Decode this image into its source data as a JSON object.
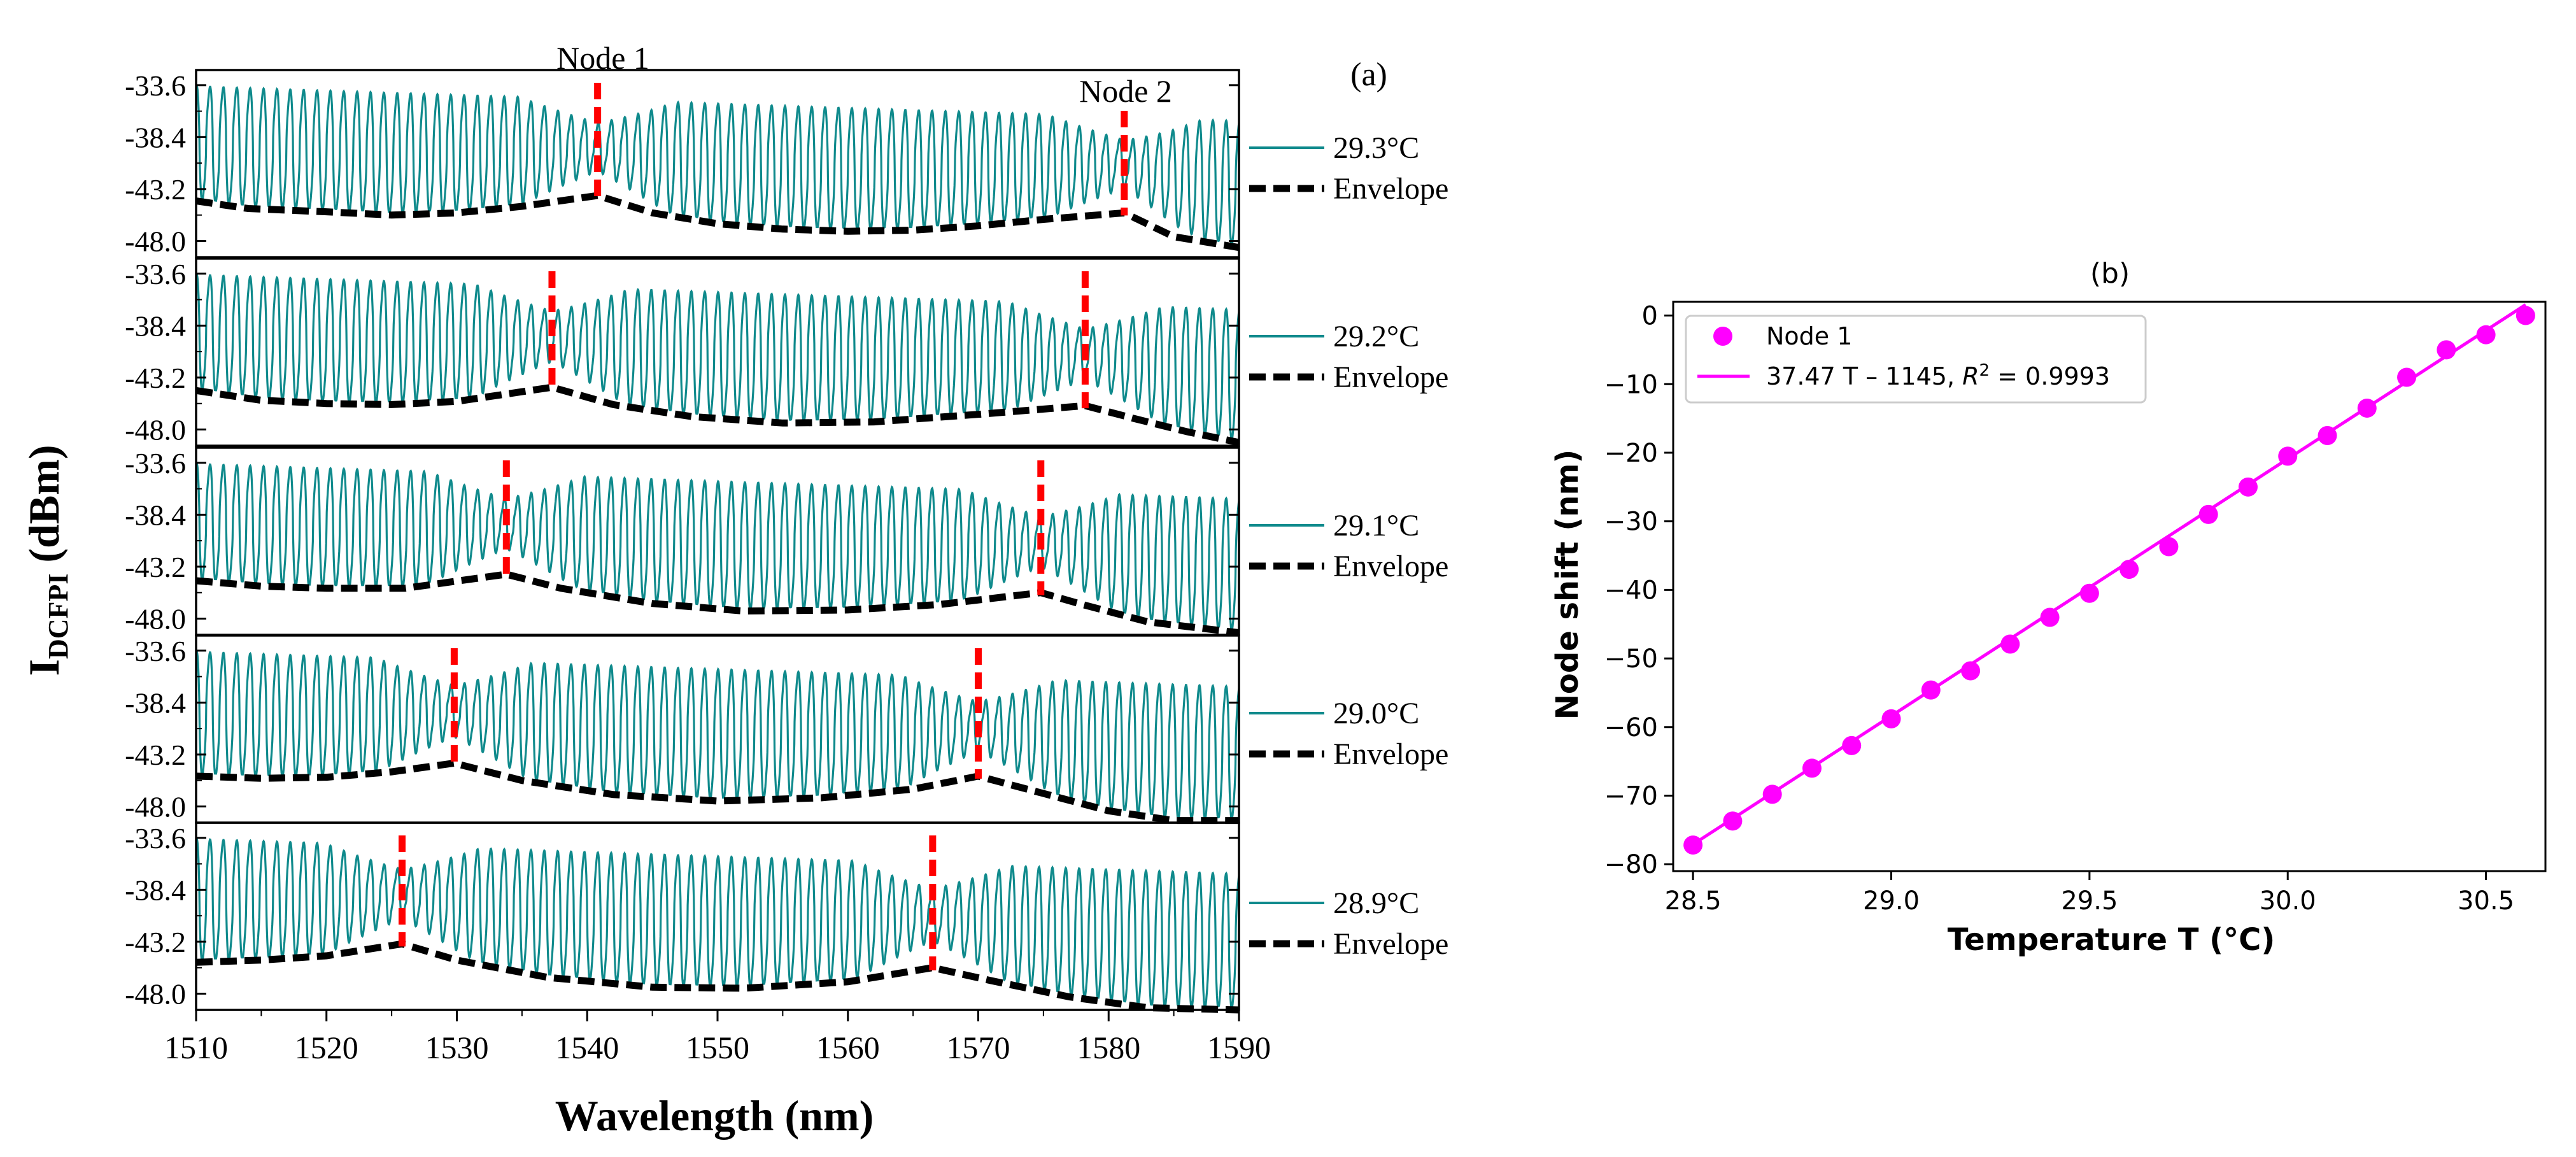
{
  "colors": {
    "trace": "#0f8a8c",
    "envelope": "#000000",
    "node_marker": "#ff0000",
    "fit": "#ff00ff",
    "points": "#ff00ff",
    "axis": "#000000"
  },
  "icons": {
    "legend_line": "line-swatch-icon",
    "legend_dashed": "dashed-swatch-icon",
    "legend_marker": "circle-marker-icon"
  },
  "chart_data": [
    {
      "type": "line",
      "panel_label": "(a)",
      "xlabel": "Wavelength (nm)",
      "ylabel_main": "I",
      "ylabel_sub": "DCFPI",
      "ylabel_unit": "(dBm)",
      "xlim": [
        1510,
        1590
      ],
      "xticks": [
        1510,
        1520,
        1530,
        1540,
        1550,
        1560,
        1570,
        1580,
        1590
      ],
      "ylim": [
        -49.5,
        -32.2
      ],
      "yticks": [
        "-33.6",
        "-38.4",
        "-43.2",
        "-48.0"
      ],
      "ytick_values": [
        -33.6,
        -38.4,
        -43.2,
        -48.0
      ],
      "node_labels": [
        "Node 1",
        "Node 2"
      ],
      "envelope_label": "Envelope",
      "fringe_count": 78,
      "subplots": [
        {
          "temperature": "29.3°C",
          "node1": 1540.8,
          "node2": 1581.2,
          "envelope": [
            [
              1510,
              -44.3
            ],
            [
              1514,
              -45.0
            ],
            [
              1520,
              -45.3
            ],
            [
              1525,
              -45.6
            ],
            [
              1530,
              -45.4
            ],
            [
              1535,
              -44.8
            ],
            [
              1540.8,
              -43.8
            ],
            [
              1545,
              -45.4
            ],
            [
              1550,
              -46.4
            ],
            [
              1555,
              -46.9
            ],
            [
              1560,
              -47.1
            ],
            [
              1565,
              -47.0
            ],
            [
              1570,
              -46.6
            ],
            [
              1575,
              -46.0
            ],
            [
              1581.2,
              -45.4
            ],
            [
              1585,
              -47.6
            ],
            [
              1590,
              -48.6
            ]
          ]
        },
        {
          "temperature": "29.2°C",
          "node1": 1537.3,
          "node2": 1578.2,
          "envelope": [
            [
              1510,
              -44.4
            ],
            [
              1515,
              -45.3
            ],
            [
              1520,
              -45.6
            ],
            [
              1525,
              -45.7
            ],
            [
              1530,
              -45.4
            ],
            [
              1537.3,
              -44.1
            ],
            [
              1542,
              -45.7
            ],
            [
              1548,
              -46.8
            ],
            [
              1555,
              -47.4
            ],
            [
              1562,
              -47.3
            ],
            [
              1570,
              -46.6
            ],
            [
              1578.2,
              -45.8
            ],
            [
              1582,
              -47.0
            ],
            [
              1586,
              -48.2
            ],
            [
              1590,
              -49.2
            ]
          ]
        },
        {
          "temperature": "29.1°C",
          "node1": 1533.8,
          "node2": 1574.8,
          "envelope": [
            [
              1510,
              -44.5
            ],
            [
              1515,
              -45.0
            ],
            [
              1520,
              -45.2
            ],
            [
              1526,
              -45.2
            ],
            [
              1533.8,
              -43.9
            ],
            [
              1538,
              -45.2
            ],
            [
              1545,
              -46.6
            ],
            [
              1552,
              -47.3
            ],
            [
              1560,
              -47.2
            ],
            [
              1567,
              -46.7
            ],
            [
              1574.8,
              -45.6
            ],
            [
              1578,
              -46.7
            ],
            [
              1583,
              -48.3
            ],
            [
              1590,
              -49.3
            ]
          ]
        },
        {
          "temperature": "29.0°C",
          "node1": 1529.8,
          "node2": 1570.0,
          "envelope": [
            [
              1510,
              -45.2
            ],
            [
              1515,
              -45.4
            ],
            [
              1520,
              -45.3
            ],
            [
              1525,
              -44.8
            ],
            [
              1529.8,
              -44.0
            ],
            [
              1535,
              -45.6
            ],
            [
              1542,
              -46.9
            ],
            [
              1550,
              -47.5
            ],
            [
              1558,
              -47.2
            ],
            [
              1565,
              -46.4
            ],
            [
              1570,
              -45.2
            ],
            [
              1575,
              -46.8
            ],
            [
              1580,
              -48.4
            ],
            [
              1585,
              -49.3
            ],
            [
              1590,
              -49.3
            ]
          ]
        },
        {
          "temperature": "28.9°C",
          "node1": 1525.8,
          "node2": 1566.5,
          "envelope": [
            [
              1510,
              -45.1
            ],
            [
              1515,
              -44.9
            ],
            [
              1520,
              -44.5
            ],
            [
              1525.8,
              -43.4
            ],
            [
              1530,
              -44.9
            ],
            [
              1537,
              -46.5
            ],
            [
              1545,
              -47.4
            ],
            [
              1552,
              -47.5
            ],
            [
              1560,
              -46.9
            ],
            [
              1566.5,
              -45.6
            ],
            [
              1571,
              -46.8
            ],
            [
              1577,
              -48.3
            ],
            [
              1583,
              -49.3
            ],
            [
              1590,
              -49.5
            ]
          ]
        }
      ]
    },
    {
      "type": "scatter",
      "panel_label": "(b)",
      "title": "(b)",
      "xlabel": "Temperature T (°C)",
      "ylabel": "Node shift (nm)",
      "xlim": [
        28.45,
        30.65
      ],
      "ylim": [
        -81,
        2
      ],
      "xticks": [
        "28.5",
        "29.0",
        "29.5",
        "30.0",
        "30.5"
      ],
      "xtick_values": [
        28.5,
        29.0,
        29.5,
        30.0,
        30.5
      ],
      "yticks": [
        "0",
        "−10",
        "−20",
        "−30",
        "−40",
        "−50",
        "−60",
        "−70",
        "−80"
      ],
      "ytick_values": [
        0,
        -10,
        -20,
        -30,
        -40,
        -50,
        -60,
        -70,
        -80
      ],
      "legend": [
        {
          "label": "Node 1"
        },
        {
          "label_prefix": "37.47 T – 1145, ",
          "label_r": "R",
          "label_sup": "2",
          "label_suffix": " = 0.9993"
        }
      ],
      "fit": {
        "slope": 37.47,
        "intercept": -1145
      },
      "series": [
        {
          "name": "Node 1",
          "x": [
            28.5,
            28.6,
            28.7,
            28.8,
            28.9,
            29.0,
            29.1,
            29.2,
            29.3,
            29.4,
            29.5,
            29.6,
            29.7,
            29.8,
            29.9,
            30.0,
            30.1,
            30.2,
            30.3,
            30.4,
            30.5,
            30.6
          ],
          "y": [
            -77.2,
            -73.7,
            -69.8,
            -66.0,
            -62.7,
            -58.8,
            -54.6,
            -51.8,
            -47.9,
            -44.0,
            -40.5,
            -37.0,
            -33.7,
            -29.0,
            -25.0,
            -20.5,
            -17.5,
            -13.5,
            -9.0,
            -5.0,
            -2.8,
            0.0
          ]
        }
      ]
    }
  ]
}
